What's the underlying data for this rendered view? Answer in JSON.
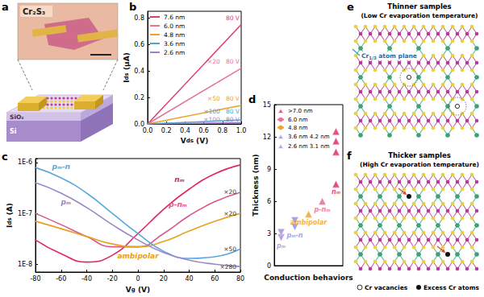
{
  "chart_data": [
    {
      "panel": "b",
      "type": "line",
      "xlabel": {
        "main": "V",
        "sub": "ds",
        "after": " (V)"
      },
      "ylabel": {
        "main": "I",
        "sub": "ds",
        "after": " (μA)"
      },
      "x": [
        0,
        1
      ],
      "xlim": [
        0,
        1
      ],
      "xticks": [
        {
          "value": 0,
          "label": "0.0"
        },
        0.2,
        0.4,
        0.6,
        0.8,
        {
          "value": 1,
          "label": "1.0"
        }
      ],
      "ylim": [
        0,
        0.85
      ],
      "yticks": [
        {
          "value": 0,
          "label": "0.0"
        },
        0.2,
        0.4,
        0.6,
        0.8
      ],
      "legend": "top-left",
      "grid": false,
      "series": [
        {
          "name": "7.6 nm",
          "color": "#dd3a74",
          "values": [
            0,
            0.75
          ],
          "annotations": [
            "80 V"
          ]
        },
        {
          "name": "6.0 nm",
          "color": "#e7709b",
          "values": [
            0,
            0.42
          ],
          "annotations": [
            "×20",
            "80 V"
          ]
        },
        {
          "name": "4.8 nm",
          "color": "#eea22a",
          "values": [
            0,
            0.14
          ],
          "annotations": [
            "×50",
            "80 V"
          ]
        },
        {
          "name": "3.6 nm",
          "color": "#4da3db",
          "values": [
            0,
            0.03
          ],
          "annotations": [
            "×100",
            "80 V"
          ]
        },
        {
          "name": "2.6 nm",
          "color": "#9b82c9",
          "values": [
            0,
            0.01
          ],
          "annotations": [
            "×100",
            "80 V"
          ]
        }
      ]
    },
    {
      "panel": "c",
      "type": "line",
      "log": "y",
      "xlabel": {
        "main": "V",
        "sub": "g",
        "after": " (V)"
      },
      "ylabel": {
        "main": "I",
        "sub": "ds",
        "after": " (A)"
      },
      "x": [
        -80,
        -60,
        -40,
        -20,
        0,
        20,
        40,
        60,
        80
      ],
      "xlim": [
        -80,
        80
      ],
      "xticks": [
        -80,
        -60,
        -40,
        -20,
        0,
        20,
        40,
        60,
        80
      ],
      "ylim": [
        7e-09,
        1.2e-06
      ],
      "yticks": [
        {
          "value": 1e-08,
          "label": "1E-8"
        },
        {
          "value": 1e-07,
          "label": "1E-7"
        },
        {
          "value": 1e-06,
          "label": "1E-6"
        }
      ],
      "grid": false,
      "series": [
        {
          "name": "nₘ",
          "color": "#e0245e",
          "values": [
            3e-08,
            1.6e-08,
            1.1e-08,
            1.5e-08,
            4e-08,
            1.2e-07,
            3e-07,
            6e-07,
            9e-07
          ]
        },
        {
          "name": "p-nₘ",
          "color": "#d9578f",
          "values": [
            1e-07,
            6e-08,
            3.5e-08,
            2.2e-08,
            2.2e-08,
            4e-08,
            9e-08,
            1.7e-07,
            2.6e-07
          ],
          "annotation": "×20"
        },
        {
          "name": "ambipolar",
          "color": "#e8a020",
          "values": [
            7e-08,
            5e-08,
            3.5e-08,
            2.5e-08,
            2.2e-08,
            2.8e-08,
            4.5e-08,
            7e-08,
            1e-07
          ],
          "annotation": "×20"
        },
        {
          "name": "pₘ-n",
          "color": "#5aa8dc",
          "values": [
            8e-07,
            5e-07,
            2.5e-07,
            1e-07,
            4e-08,
            1.8e-08,
            1.3e-08,
            1.4e-08,
            2e-08
          ],
          "annotation": "×50"
        },
        {
          "name": "pₘ",
          "color": "#9b86c9",
          "values": [
            4e-07,
            2.5e-07,
            1.3e-07,
            6e-08,
            3e-08,
            1.7e-08,
            1.2e-08,
            1e-08,
            9e-09
          ],
          "annotation": "×280"
        }
      ]
    },
    {
      "panel": "d",
      "type": "scatter",
      "xlabel": "Conduction behaviors",
      "ylabel": "Thickness (nm)",
      "categories": [
        "pₘ",
        "pₘ-n",
        "ambipolar",
        "p-nₘ",
        "nₘ"
      ],
      "ylim": [
        0,
        15
      ],
      "yticks": [
        0,
        3,
        6,
        9,
        12,
        15
      ],
      "legend": "top-left",
      "grid": false,
      "series": [
        {
          "name": ">7.0 nm",
          "color": "#e0245e",
          "marker": "triangle",
          "x": [
            "nₘ",
            "nₘ",
            "nₘ",
            "nₘ"
          ],
          "values": [
            7.6,
            10.6,
            11.6,
            12.5
          ]
        },
        {
          "name": "6.0 nm",
          "color": "#e3628f",
          "marker": "triangle",
          "x": [
            "p-nₘ"
          ],
          "values": [
            6.0
          ]
        },
        {
          "name": "4.8 nm",
          "color": "#f0a020",
          "marker": "triangle",
          "x": [
            "ambipolar"
          ],
          "values": [
            4.8
          ]
        },
        {
          "name": "3.6 nm 4.2 nm",
          "color": "#8a8fe0",
          "marker": "triangle-down",
          "x": [
            "pₘ-n",
            "pₘ-n"
          ],
          "values": [
            3.6,
            4.2
          ]
        },
        {
          "name": "2.6 nm 3.1 nm",
          "color": "#a58ad8",
          "marker": "triangle-down",
          "x": [
            "pₘ",
            "pₘ"
          ],
          "values": [
            2.6,
            3.1
          ]
        }
      ]
    }
  ],
  "diagrams": {
    "a": {
      "panel": "a",
      "inset_label": "Cr₂S₃",
      "layers": [
        "SiO₂",
        "Si"
      ]
    },
    "e": {
      "panel": "e",
      "title": "Thinner samples",
      "subtitle": "(Low Cr evaporation temperature)",
      "plane_label": {
        "main": "Cr",
        "sub": "1/3",
        "after": " atom plane"
      }
    },
    "f": {
      "panel": "f",
      "title": "Thicker samples",
      "subtitle": "(High Cr evaporation temperature)",
      "key_items": [
        "Cr vacancies",
        "Excess Cr atoms"
      ]
    }
  }
}
